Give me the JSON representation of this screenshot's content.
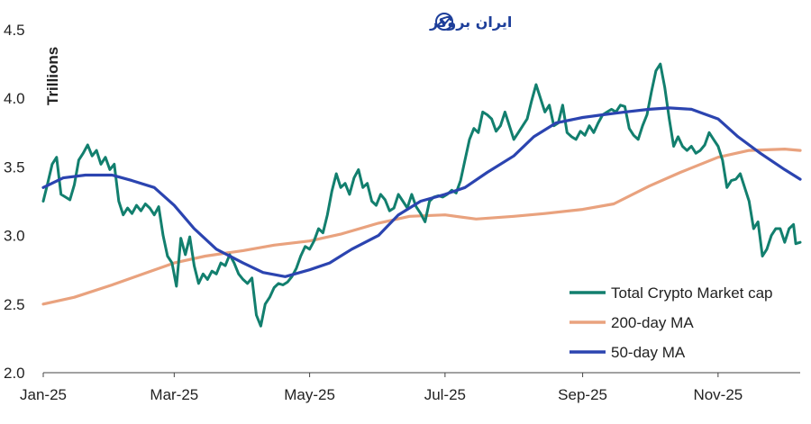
{
  "watermark": {
    "text": "ایران بروکر",
    "icon": "trend-chart-logo-icon"
  },
  "chart_data": {
    "type": "line",
    "title": "",
    "xlabel": "",
    "ylabel": "Trillions",
    "ylim": [
      2.0,
      4.5
    ],
    "yticks": [
      "2.0",
      "2.5",
      "3.0",
      "3.5",
      "4.0",
      "4.5"
    ],
    "xlim": [
      "2025-01-01",
      "2025-12-08"
    ],
    "xticks": [
      {
        "label": "Jan-25",
        "date": "2025-01-01"
      },
      {
        "label": "Mar-25",
        "date": "2025-03-01"
      },
      {
        "label": "May-25",
        "date": "2025-05-01"
      },
      {
        "label": "Jul-25",
        "date": "2025-07-01"
      },
      {
        "label": "Sep-25",
        "date": "2025-09-01"
      },
      {
        "label": "Nov-25",
        "date": "2025-11-01"
      }
    ],
    "grid": false,
    "legend": "bottom-right",
    "series": [
      {
        "name": "Total Crypto Market cap",
        "color": "#127f6e",
        "points": [
          [
            "2025-01-01",
            3.25
          ],
          [
            "2025-01-03",
            3.38
          ],
          [
            "2025-01-05",
            3.52
          ],
          [
            "2025-01-07",
            3.57
          ],
          [
            "2025-01-09",
            3.3
          ],
          [
            "2025-01-11",
            3.28
          ],
          [
            "2025-01-13",
            3.26
          ],
          [
            "2025-01-15",
            3.37
          ],
          [
            "2025-01-17",
            3.55
          ],
          [
            "2025-01-19",
            3.6
          ],
          [
            "2025-01-21",
            3.66
          ],
          [
            "2025-01-23",
            3.58
          ],
          [
            "2025-01-25",
            3.62
          ],
          [
            "2025-01-27",
            3.52
          ],
          [
            "2025-01-29",
            3.57
          ],
          [
            "2025-01-31",
            3.48
          ],
          [
            "2025-02-02",
            3.52
          ],
          [
            "2025-02-04",
            3.25
          ],
          [
            "2025-02-06",
            3.15
          ],
          [
            "2025-02-08",
            3.2
          ],
          [
            "2025-02-10",
            3.16
          ],
          [
            "2025-02-12",
            3.22
          ],
          [
            "2025-02-14",
            3.18
          ],
          [
            "2025-02-16",
            3.23
          ],
          [
            "2025-02-18",
            3.2
          ],
          [
            "2025-02-20",
            3.15
          ],
          [
            "2025-02-22",
            3.21
          ],
          [
            "2025-02-24",
            3.0
          ],
          [
            "2025-02-26",
            2.85
          ],
          [
            "2025-02-28",
            2.8
          ],
          [
            "2025-03-02",
            2.63
          ],
          [
            "2025-03-04",
            2.98
          ],
          [
            "2025-03-06",
            2.86
          ],
          [
            "2025-03-08",
            2.99
          ],
          [
            "2025-03-10",
            2.78
          ],
          [
            "2025-03-12",
            2.65
          ],
          [
            "2025-03-14",
            2.72
          ],
          [
            "2025-03-16",
            2.68
          ],
          [
            "2025-03-18",
            2.74
          ],
          [
            "2025-03-20",
            2.72
          ],
          [
            "2025-03-22",
            2.8
          ],
          [
            "2025-03-24",
            2.78
          ],
          [
            "2025-03-26",
            2.86
          ],
          [
            "2025-03-28",
            2.8
          ],
          [
            "2025-03-30",
            2.72
          ],
          [
            "2025-04-01",
            2.68
          ],
          [
            "2025-04-03",
            2.65
          ],
          [
            "2025-04-05",
            2.69
          ],
          [
            "2025-04-07",
            2.42
          ],
          [
            "2025-04-09",
            2.34
          ],
          [
            "2025-04-11",
            2.5
          ],
          [
            "2025-04-13",
            2.55
          ],
          [
            "2025-04-15",
            2.62
          ],
          [
            "2025-04-17",
            2.65
          ],
          [
            "2025-04-19",
            2.64
          ],
          [
            "2025-04-21",
            2.66
          ],
          [
            "2025-04-23",
            2.7
          ],
          [
            "2025-04-25",
            2.76
          ],
          [
            "2025-04-27",
            2.85
          ],
          [
            "2025-04-29",
            2.92
          ],
          [
            "2025-05-01",
            2.9
          ],
          [
            "2025-05-03",
            2.96
          ],
          [
            "2025-05-05",
            3.05
          ],
          [
            "2025-05-07",
            3.02
          ],
          [
            "2025-05-09",
            3.15
          ],
          [
            "2025-05-11",
            3.32
          ],
          [
            "2025-05-13",
            3.45
          ],
          [
            "2025-05-15",
            3.35
          ],
          [
            "2025-05-17",
            3.38
          ],
          [
            "2025-05-19",
            3.3
          ],
          [
            "2025-05-21",
            3.42
          ],
          [
            "2025-05-23",
            3.48
          ],
          [
            "2025-05-25",
            3.35
          ],
          [
            "2025-05-27",
            3.38
          ],
          [
            "2025-05-29",
            3.25
          ],
          [
            "2025-05-31",
            3.22
          ],
          [
            "2025-06-02",
            3.3
          ],
          [
            "2025-06-04",
            3.26
          ],
          [
            "2025-06-06",
            3.18
          ],
          [
            "2025-06-08",
            3.2
          ],
          [
            "2025-06-10",
            3.3
          ],
          [
            "2025-06-12",
            3.25
          ],
          [
            "2025-06-14",
            3.2
          ],
          [
            "2025-06-16",
            3.3
          ],
          [
            "2025-06-18",
            3.21
          ],
          [
            "2025-06-20",
            3.16
          ],
          [
            "2025-06-22",
            3.1
          ],
          [
            "2025-06-24",
            3.25
          ],
          [
            "2025-06-26",
            3.28
          ],
          [
            "2025-06-28",
            3.29
          ],
          [
            "2025-06-30",
            3.28
          ],
          [
            "2025-07-02",
            3.3
          ],
          [
            "2025-07-04",
            3.33
          ],
          [
            "2025-07-06",
            3.31
          ],
          [
            "2025-07-08",
            3.4
          ],
          [
            "2025-07-10",
            3.55
          ],
          [
            "2025-07-12",
            3.7
          ],
          [
            "2025-07-14",
            3.78
          ],
          [
            "2025-07-16",
            3.75
          ],
          [
            "2025-07-18",
            3.9
          ],
          [
            "2025-07-20",
            3.88
          ],
          [
            "2025-07-22",
            3.85
          ],
          [
            "2025-07-24",
            3.76
          ],
          [
            "2025-07-26",
            3.8
          ],
          [
            "2025-07-28",
            3.9
          ],
          [
            "2025-07-30",
            3.8
          ],
          [
            "2025-08-01",
            3.7
          ],
          [
            "2025-08-03",
            3.75
          ],
          [
            "2025-08-05",
            3.8
          ],
          [
            "2025-08-07",
            3.85
          ],
          [
            "2025-08-09",
            3.98
          ],
          [
            "2025-08-11",
            4.1
          ],
          [
            "2025-08-13",
            4.0
          ],
          [
            "2025-08-15",
            3.9
          ],
          [
            "2025-08-17",
            3.95
          ],
          [
            "2025-08-19",
            3.8
          ],
          [
            "2025-08-21",
            3.82
          ],
          [
            "2025-08-23",
            3.95
          ],
          [
            "2025-08-25",
            3.75
          ],
          [
            "2025-08-27",
            3.72
          ],
          [
            "2025-08-29",
            3.7
          ],
          [
            "2025-08-31",
            3.76
          ],
          [
            "2025-09-02",
            3.73
          ],
          [
            "2025-09-04",
            3.8
          ],
          [
            "2025-09-06",
            3.75
          ],
          [
            "2025-09-08",
            3.82
          ],
          [
            "2025-09-10",
            3.88
          ],
          [
            "2025-09-12",
            3.9
          ],
          [
            "2025-09-14",
            3.92
          ],
          [
            "2025-09-16",
            3.9
          ],
          [
            "2025-09-18",
            3.95
          ],
          [
            "2025-09-20",
            3.94
          ],
          [
            "2025-09-22",
            3.78
          ],
          [
            "2025-09-24",
            3.73
          ],
          [
            "2025-09-26",
            3.7
          ],
          [
            "2025-09-28",
            3.8
          ],
          [
            "2025-09-30",
            3.88
          ],
          [
            "2025-10-02",
            4.05
          ],
          [
            "2025-10-04",
            4.2
          ],
          [
            "2025-10-06",
            4.25
          ],
          [
            "2025-10-08",
            4.08
          ],
          [
            "2025-10-10",
            3.85
          ],
          [
            "2025-10-12",
            3.65
          ],
          [
            "2025-10-14",
            3.72
          ],
          [
            "2025-10-16",
            3.65
          ],
          [
            "2025-10-18",
            3.62
          ],
          [
            "2025-10-20",
            3.65
          ],
          [
            "2025-10-22",
            3.6
          ],
          [
            "2025-10-24",
            3.62
          ],
          [
            "2025-10-26",
            3.66
          ],
          [
            "2025-10-28",
            3.75
          ],
          [
            "2025-10-30",
            3.7
          ],
          [
            "2025-11-01",
            3.65
          ],
          [
            "2025-11-03",
            3.55
          ],
          [
            "2025-11-05",
            3.35
          ],
          [
            "2025-11-07",
            3.4
          ],
          [
            "2025-11-09",
            3.41
          ],
          [
            "2025-11-11",
            3.45
          ],
          [
            "2025-11-13",
            3.35
          ],
          [
            "2025-11-15",
            3.25
          ],
          [
            "2025-11-17",
            3.05
          ],
          [
            "2025-11-19",
            3.1
          ],
          [
            "2025-11-21",
            2.85
          ],
          [
            "2025-11-23",
            2.9
          ],
          [
            "2025-11-25",
            3.0
          ],
          [
            "2025-11-27",
            3.05
          ],
          [
            "2025-11-29",
            3.05
          ],
          [
            "2025-12-01",
            2.95
          ],
          [
            "2025-12-03",
            3.05
          ],
          [
            "2025-12-05",
            3.08
          ],
          [
            "2025-12-06",
            2.94
          ],
          [
            "2025-12-08",
            2.95
          ]
        ]
      },
      {
        "name": "200-day MA",
        "color": "#e9a27e",
        "points": [
          [
            "2025-01-01",
            2.5
          ],
          [
            "2025-01-15",
            2.55
          ],
          [
            "2025-02-01",
            2.64
          ],
          [
            "2025-02-15",
            2.72
          ],
          [
            "2025-03-01",
            2.8
          ],
          [
            "2025-03-15",
            2.85
          ],
          [
            "2025-04-01",
            2.89
          ],
          [
            "2025-04-15",
            2.93
          ],
          [
            "2025-05-01",
            2.96
          ],
          [
            "2025-05-15",
            3.01
          ],
          [
            "2025-06-01",
            3.09
          ],
          [
            "2025-06-15",
            3.14
          ],
          [
            "2025-07-01",
            3.15
          ],
          [
            "2025-07-15",
            3.12
          ],
          [
            "2025-08-01",
            3.14
          ],
          [
            "2025-08-15",
            3.16
          ],
          [
            "2025-09-01",
            3.19
          ],
          [
            "2025-09-15",
            3.23
          ],
          [
            "2025-10-01",
            3.36
          ],
          [
            "2025-10-15",
            3.46
          ],
          [
            "2025-11-01",
            3.57
          ],
          [
            "2025-11-15",
            3.62
          ],
          [
            "2025-12-01",
            3.63
          ],
          [
            "2025-12-08",
            3.62
          ]
        ]
      },
      {
        "name": "50-day MA",
        "color": "#2b44b0",
        "points": [
          [
            "2025-01-01",
            3.35
          ],
          [
            "2025-01-10",
            3.42
          ],
          [
            "2025-01-20",
            3.44
          ],
          [
            "2025-02-01",
            3.44
          ],
          [
            "2025-02-10",
            3.4
          ],
          [
            "2025-02-20",
            3.35
          ],
          [
            "2025-03-01",
            3.22
          ],
          [
            "2025-03-10",
            3.05
          ],
          [
            "2025-03-20",
            2.9
          ],
          [
            "2025-04-01",
            2.8
          ],
          [
            "2025-04-10",
            2.73
          ],
          [
            "2025-04-20",
            2.7
          ],
          [
            "2025-05-01",
            2.75
          ],
          [
            "2025-05-10",
            2.8
          ],
          [
            "2025-05-20",
            2.9
          ],
          [
            "2025-06-01",
            3.0
          ],
          [
            "2025-06-10",
            3.15
          ],
          [
            "2025-06-20",
            3.25
          ],
          [
            "2025-07-01",
            3.3
          ],
          [
            "2025-07-10",
            3.35
          ],
          [
            "2025-07-20",
            3.46
          ],
          [
            "2025-08-01",
            3.58
          ],
          [
            "2025-08-10",
            3.72
          ],
          [
            "2025-08-20",
            3.82
          ],
          [
            "2025-09-01",
            3.86
          ],
          [
            "2025-09-10",
            3.88
          ],
          [
            "2025-09-20",
            3.9
          ],
          [
            "2025-10-01",
            3.92
          ],
          [
            "2025-10-10",
            3.93
          ],
          [
            "2025-10-20",
            3.92
          ],
          [
            "2025-11-01",
            3.85
          ],
          [
            "2025-11-10",
            3.72
          ],
          [
            "2025-11-20",
            3.6
          ],
          [
            "2025-12-01",
            3.48
          ],
          [
            "2025-12-08",
            3.41
          ]
        ]
      }
    ]
  }
}
